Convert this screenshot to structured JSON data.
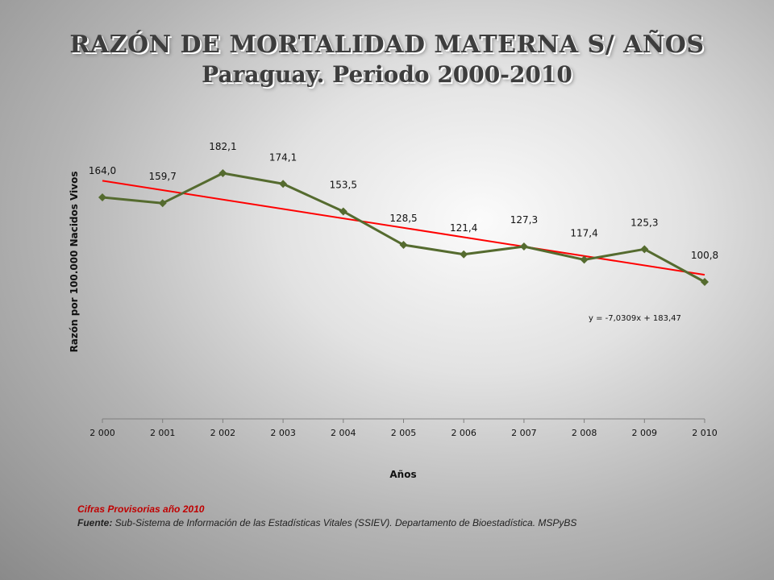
{
  "slide": {
    "title_line1": "RAZÓN DE MORTALIDAD MATERNA S/ AÑOS",
    "title_line2": "Paraguay. Periodo 2000-2010",
    "note": "Cifras Provisorias año 2010",
    "source_label": "Fuente:",
    "source_text": " Sub-Sistema de Información de las Estadísticas Vitales (SSIEV). Departamento de Bioestadística. MSPyBS"
  },
  "chart_data": {
    "type": "line",
    "title": "",
    "xlabel": "Años",
    "ylabel": "Razón por 100.000 Nacidos Vivos",
    "categories": [
      "2 000",
      "2 001",
      "2 002",
      "2 003",
      "2 004",
      "2 005",
      "2 006",
      "2 007",
      "2 008",
      "2 009",
      "2 010"
    ],
    "series": [
      {
        "values": [
          164.0,
          159.7,
          182.1,
          174.1,
          153.5,
          128.5,
          121.4,
          127.3,
          117.4,
          125.3,
          100.8
        ],
        "data_labels": [
          "164,0",
          "159,7",
          "182,1",
          "174,1",
          "153,5",
          "128,5",
          "121,4",
          "127,3",
          "117,4",
          "125,3",
          "100,8"
        ],
        "color": "#556b2f",
        "marker": "diamond"
      }
    ],
    "trendline": {
      "type": "linear",
      "slope": -7.0309,
      "intercept": 183.47,
      "equation_label": "y = -7,0309x + 183,47",
      "color": "#ff0000"
    },
    "y_axis_visible": false,
    "grid": false,
    "legend": "none"
  }
}
